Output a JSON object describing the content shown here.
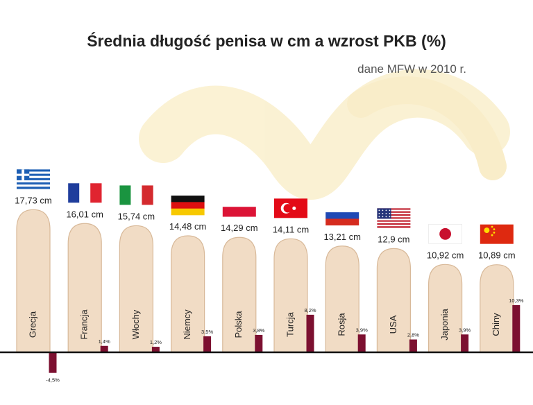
{
  "chart_data": {
    "type": "bar",
    "title": "Średnia długość penisa w cm a wzrost PKB (%)",
    "subtitle": "dane MFW w 2010 r.",
    "categories": [
      "Grecja",
      "Francja",
      "Włochy",
      "Niemcy",
      "Polska",
      "Turcja",
      "Rosja",
      "USA",
      "Japonia",
      "Chiny"
    ],
    "series": [
      {
        "values": [
          17.73,
          16.01,
          15.74,
          14.48,
          14.29,
          14.11,
          13.21,
          12.9,
          10.92,
          10.89
        ],
        "labels": [
          "17,73 cm",
          "16,01 cm",
          "15,74 cm",
          "14,48 cm",
          "14,29 cm",
          "14,11 cm",
          "13,21 cm",
          "12,9 cm",
          "10,92 cm",
          "10,89 cm"
        ]
      },
      {
        "values": [
          -4.5,
          1.4,
          1.2,
          3.5,
          3.8,
          8.2,
          3.9,
          2.8,
          3.9,
          10.3
        ],
        "labels": [
          "-4,5%",
          "1,4%",
          "1,2%",
          "3,5%",
          "3,8%",
          "8,2%",
          "3,9%",
          "2,8%",
          "3,9%",
          "10,3%"
        ]
      }
    ],
    "flags": [
      "greece-flag",
      "france-flag",
      "italy-flag",
      "germany-flag",
      "poland-flag",
      "turkey-flag",
      "russia-flag",
      "usa-flag",
      "japan-flag",
      "china-flag"
    ],
    "colors": {
      "shape": "#f1dcc5",
      "shape_stroke": "#d8b999",
      "bar": "#7c1030",
      "axis": "#111111",
      "tape": "#f6e2a0"
    }
  }
}
